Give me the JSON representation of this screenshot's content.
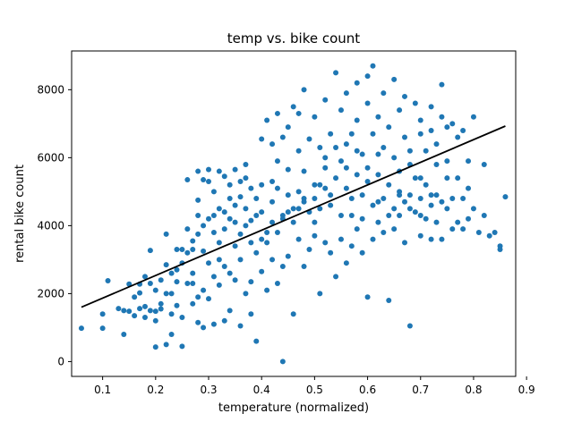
{
  "chart_data": {
    "type": "scatter",
    "title": "temp vs. bike count",
    "xlabel": "temperature (normalized)",
    "ylabel": "rental bike count",
    "xlim": [
      0.0415,
      0.8795
    ],
    "ylim": [
      -436,
      9140
    ],
    "xticks": [
      0.1,
      0.2,
      0.3,
      0.4,
      0.5,
      0.6,
      0.7,
      0.8,
      0.9
    ],
    "xtick_labels": [
      "0.1",
      "0.2",
      "0.3",
      "0.4",
      "0.5",
      "0.6",
      "0.7",
      "0.8",
      "0.9"
    ],
    "yticks": [
      0,
      2000,
      4000,
      6000,
      8000
    ],
    "ytick_labels": [
      "0",
      "2000",
      "4000",
      "6000",
      "8000"
    ],
    "grid": false,
    "colors": {
      "points": "#1f77b4",
      "fit_line": "#000000"
    },
    "fit_line": {
      "x": [
        0.06,
        0.86
      ],
      "y": [
        1600,
        6930
      ]
    },
    "points": [
      [
        0.06,
        980
      ],
      [
        0.1,
        980
      ],
      [
        0.1,
        1400
      ],
      [
        0.11,
        2380
      ],
      [
        0.13,
        1560
      ],
      [
        0.14,
        800
      ],
      [
        0.15,
        1480
      ],
      [
        0.15,
        2280
      ],
      [
        0.16,
        1350
      ],
      [
        0.17,
        1560
      ],
      [
        0.17,
        2020
      ],
      [
        0.17,
        2280
      ],
      [
        0.18,
        1620
      ],
      [
        0.18,
        1300
      ],
      [
        0.19,
        1500
      ],
      [
        0.19,
        3270
      ],
      [
        0.2,
        1480
      ],
      [
        0.2,
        1200
      ],
      [
        0.2,
        430
      ],
      [
        0.21,
        1550
      ],
      [
        0.21,
        1700
      ],
      [
        0.22,
        2850
      ],
      [
        0.22,
        500
      ],
      [
        0.22,
        3750
      ],
      [
        0.23,
        1400
      ],
      [
        0.23,
        2000
      ],
      [
        0.23,
        800
      ],
      [
        0.24,
        1650
      ],
      [
        0.24,
        2350
      ],
      [
        0.24,
        3300
      ],
      [
        0.25,
        1300
      ],
      [
        0.25,
        450
      ],
      [
        0.25,
        3300
      ],
      [
        0.26,
        2300
      ],
      [
        0.26,
        5350
      ],
      [
        0.26,
        3900
      ],
      [
        0.27,
        1700
      ],
      [
        0.27,
        2600
      ],
      [
        0.27,
        2300
      ],
      [
        0.27,
        3550
      ],
      [
        0.28,
        1900
      ],
      [
        0.28,
        1150
      ],
      [
        0.28,
        4750
      ],
      [
        0.28,
        3750
      ],
      [
        0.28,
        5600
      ],
      [
        0.29,
        2100
      ],
      [
        0.29,
        1000
      ],
      [
        0.29,
        3250
      ],
      [
        0.29,
        5350
      ],
      [
        0.3,
        2900
      ],
      [
        0.3,
        1850
      ],
      [
        0.3,
        4200
      ],
      [
        0.3,
        5650
      ],
      [
        0.31,
        2500
      ],
      [
        0.31,
        1100
      ],
      [
        0.31,
        3800
      ],
      [
        0.31,
        5000
      ],
      [
        0.32,
        3000
      ],
      [
        0.32,
        2250
      ],
      [
        0.32,
        3500
      ],
      [
        0.32,
        4500
      ],
      [
        0.33,
        2800
      ],
      [
        0.33,
        1200
      ],
      [
        0.33,
        3900
      ],
      [
        0.33,
        5450
      ],
      [
        0.34,
        2600
      ],
      [
        0.34,
        4200
      ],
      [
        0.34,
        5200
      ],
      [
        0.34,
        1500
      ],
      [
        0.35,
        3400
      ],
      [
        0.35,
        2400
      ],
      [
        0.35,
        4600
      ],
      [
        0.35,
        5650
      ],
      [
        0.36,
        1050
      ],
      [
        0.36,
        3000
      ],
      [
        0.36,
        3750
      ],
      [
        0.36,
        4850
      ],
      [
        0.37,
        2000
      ],
      [
        0.37,
        4000
      ],
      [
        0.37,
        5400
      ],
      [
        0.37,
        5800
      ],
      [
        0.38,
        3500
      ],
      [
        0.38,
        2350
      ],
      [
        0.38,
        4150
      ],
      [
        0.38,
        1400
      ],
      [
        0.39,
        3200
      ],
      [
        0.39,
        600
      ],
      [
        0.39,
        4800
      ],
      [
        0.4,
        3600
      ],
      [
        0.4,
        2650
      ],
      [
        0.4,
        5200
      ],
      [
        0.4,
        6550
      ],
      [
        0.41,
        3800
      ],
      [
        0.41,
        7100
      ],
      [
        0.41,
        2100
      ],
      [
        0.42,
        4100
      ],
      [
        0.42,
        3000
      ],
      [
        0.42,
        5300
      ],
      [
        0.42,
        6400
      ],
      [
        0.43,
        3800
      ],
      [
        0.43,
        2300
      ],
      [
        0.43,
        5900
      ],
      [
        0.43,
        7300
      ],
      [
        0.44,
        4300
      ],
      [
        0.44,
        2800
      ],
      [
        0.44,
        6600
      ],
      [
        0.44,
        0
      ],
      [
        0.45,
        4400
      ],
      [
        0.45,
        3100
      ],
      [
        0.45,
        5650
      ],
      [
        0.45,
        6900
      ],
      [
        0.46,
        4100
      ],
      [
        0.46,
        7500
      ],
      [
        0.46,
        1400
      ],
      [
        0.47,
        4500
      ],
      [
        0.47,
        3600
      ],
      [
        0.47,
        6200
      ],
      [
        0.47,
        7300
      ],
      [
        0.48,
        4700
      ],
      [
        0.48,
        2800
      ],
      [
        0.48,
        5600
      ],
      [
        0.48,
        8000
      ],
      [
        0.49,
        4400
      ],
      [
        0.49,
        3300
      ],
      [
        0.49,
        6550
      ],
      [
        0.5,
        4800
      ],
      [
        0.5,
        3700
      ],
      [
        0.5,
        5200
      ],
      [
        0.5,
        7200
      ],
      [
        0.51,
        4500
      ],
      [
        0.51,
        2000
      ],
      [
        0.51,
        6300
      ],
      [
        0.52,
        5100
      ],
      [
        0.52,
        3500
      ],
      [
        0.52,
        5700
      ],
      [
        0.52,
        7700
      ],
      [
        0.53,
        4600
      ],
      [
        0.53,
        3200
      ],
      [
        0.53,
        6700
      ],
      [
        0.54,
        5400
      ],
      [
        0.54,
        2500
      ],
      [
        0.54,
        6300
      ],
      [
        0.54,
        8500
      ],
      [
        0.55,
        4300
      ],
      [
        0.55,
        3600
      ],
      [
        0.55,
        7400
      ],
      [
        0.56,
        5700
      ],
      [
        0.56,
        2900
      ],
      [
        0.56,
        6400
      ],
      [
        0.56,
        7900
      ],
      [
        0.57,
        4800
      ],
      [
        0.57,
        3400
      ],
      [
        0.57,
        6700
      ],
      [
        0.58,
        5500
      ],
      [
        0.58,
        3900
      ],
      [
        0.58,
        7100
      ],
      [
        0.58,
        8200
      ],
      [
        0.59,
        4200
      ],
      [
        0.59,
        3200
      ],
      [
        0.59,
        6100
      ],
      [
        0.6,
        5300
      ],
      [
        0.6,
        1900
      ],
      [
        0.6,
        7600
      ],
      [
        0.6,
        8400
      ],
      [
        0.61,
        4600
      ],
      [
        0.61,
        3600
      ],
      [
        0.61,
        6700
      ],
      [
        0.61,
        8700
      ],
      [
        0.62,
        5500
      ],
      [
        0.62,
        4100
      ],
      [
        0.62,
        7200
      ],
      [
        0.63,
        4800
      ],
      [
        0.63,
        3800
      ],
      [
        0.63,
        6300
      ],
      [
        0.63,
        7900
      ],
      [
        0.64,
        5200
      ],
      [
        0.64,
        1800
      ],
      [
        0.64,
        6900
      ],
      [
        0.65,
        4500
      ],
      [
        0.65,
        3900
      ],
      [
        0.65,
        6000
      ],
      [
        0.65,
        8300
      ],
      [
        0.66,
        5000
      ],
      [
        0.66,
        4300
      ],
      [
        0.66,
        7400
      ],
      [
        0.67,
        4700
      ],
      [
        0.67,
        3500
      ],
      [
        0.67,
        6600
      ],
      [
        0.67,
        7800
      ],
      [
        0.68,
        4900
      ],
      [
        0.68,
        1050
      ],
      [
        0.68,
        6200
      ],
      [
        0.69,
        4400
      ],
      [
        0.69,
        5400
      ],
      [
        0.69,
        7600
      ],
      [
        0.7,
        4800
      ],
      [
        0.7,
        3700
      ],
      [
        0.7,
        6700
      ],
      [
        0.7,
        7100
      ],
      [
        0.71,
        5200
      ],
      [
        0.71,
        4200
      ],
      [
        0.71,
        6200
      ],
      [
        0.72,
        4600
      ],
      [
        0.72,
        3600
      ],
      [
        0.72,
        6800
      ],
      [
        0.72,
        7500
      ],
      [
        0.73,
        4900
      ],
      [
        0.73,
        4100
      ],
      [
        0.73,
        6400
      ],
      [
        0.74,
        4700
      ],
      [
        0.74,
        3600
      ],
      [
        0.74,
        7200
      ],
      [
        0.74,
        8150
      ],
      [
        0.75,
        4500
      ],
      [
        0.75,
        5900
      ],
      [
        0.75,
        6900
      ],
      [
        0.76,
        4800
      ],
      [
        0.76,
        3900
      ],
      [
        0.76,
        7000
      ],
      [
        0.77,
        4100
      ],
      [
        0.77,
        6600
      ],
      [
        0.78,
        4800
      ],
      [
        0.78,
        3900
      ],
      [
        0.78,
        6800
      ],
      [
        0.79,
        4200
      ],
      [
        0.79,
        5900
      ],
      [
        0.8,
        4500
      ],
      [
        0.8,
        7200
      ],
      [
        0.81,
        3800
      ],
      [
        0.82,
        4300
      ],
      [
        0.82,
        5800
      ],
      [
        0.83,
        3700
      ],
      [
        0.84,
        3800
      ],
      [
        0.85,
        3300
      ],
      [
        0.85,
        3400
      ],
      [
        0.86,
        4850
      ],
      [
        0.56,
        5100
      ],
      [
        0.57,
        4300
      ],
      [
        0.59,
        4900
      ],
      [
        0.62,
        4700
      ],
      [
        0.64,
        4300
      ],
      [
        0.66,
        4900
      ],
      [
        0.68,
        4500
      ],
      [
        0.7,
        4300
      ],
      [
        0.72,
        4900
      ],
      [
        0.5,
        4100
      ],
      [
        0.48,
        4800
      ],
      [
        0.53,
        4900
      ],
      [
        0.46,
        4500
      ],
      [
        0.44,
        4200
      ],
      [
        0.42,
        4700
      ],
      [
        0.41,
        3500
      ],
      [
        0.39,
        4300
      ],
      [
        0.37,
        4500
      ],
      [
        0.35,
        4100
      ],
      [
        0.33,
        4400
      ],
      [
        0.31,
        4300
      ],
      [
        0.29,
        4000
      ],
      [
        0.27,
        3300
      ],
      [
        0.25,
        2900
      ],
      [
        0.23,
        2600
      ],
      [
        0.21,
        2400
      ],
      [
        0.19,
        2300
      ],
      [
        0.6,
        5700
      ],
      [
        0.62,
        6100
      ],
      [
        0.58,
        6200
      ],
      [
        0.66,
        5600
      ],
      [
        0.68,
        5800
      ],
      [
        0.7,
        5400
      ],
      [
        0.73,
        5800
      ],
      [
        0.75,
        5400
      ],
      [
        0.77,
        5400
      ],
      [
        0.79,
        5100
      ],
      [
        0.55,
        5900
      ],
      [
        0.52,
        6000
      ],
      [
        0.51,
        5200
      ],
      [
        0.47,
        5000
      ],
      [
        0.45,
        4900
      ],
      [
        0.43,
        5100
      ],
      [
        0.4,
        4400
      ],
      [
        0.38,
        5100
      ],
      [
        0.36,
        5300
      ],
      [
        0.34,
        4800
      ],
      [
        0.32,
        5600
      ],
      [
        0.3,
        5300
      ],
      [
        0.28,
        4300
      ],
      [
        0.26,
        3200
      ],
      [
        0.24,
        2700
      ],
      [
        0.22,
        2000
      ],
      [
        0.2,
        2100
      ],
      [
        0.18,
        2500
      ],
      [
        0.16,
        1900
      ],
      [
        0.14,
        1500
      ]
    ]
  }
}
